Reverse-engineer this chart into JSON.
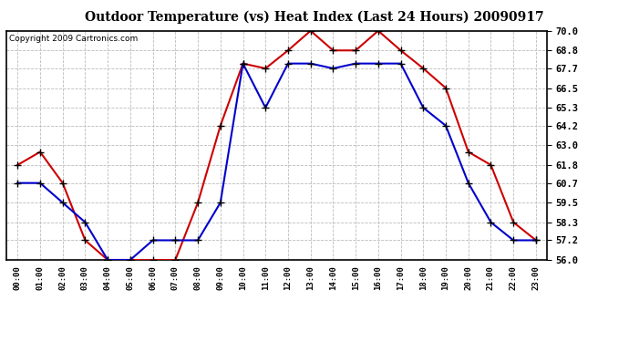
{
  "title": "Outdoor Temperature (vs) Heat Index (Last 24 Hours) 20090917",
  "copyright": "Copyright 2009 Cartronics.com",
  "hours": [
    "00:00",
    "01:00",
    "02:00",
    "03:00",
    "04:00",
    "05:00",
    "06:00",
    "07:00",
    "08:00",
    "09:00",
    "10:00",
    "11:00",
    "12:00",
    "13:00",
    "14:00",
    "15:00",
    "16:00",
    "17:00",
    "18:00",
    "19:00",
    "20:00",
    "21:00",
    "22:00",
    "23:00"
  ],
  "temp": [
    60.7,
    60.7,
    59.5,
    58.3,
    56.0,
    56.0,
    57.2,
    57.2,
    57.2,
    59.5,
    68.0,
    65.3,
    68.0,
    68.0,
    67.7,
    68.0,
    68.0,
    68.0,
    65.3,
    64.2,
    60.7,
    58.3,
    57.2,
    57.2
  ],
  "heat_index": [
    61.8,
    62.6,
    60.7,
    57.2,
    56.0,
    56.0,
    56.0,
    56.0,
    59.5,
    64.2,
    68.0,
    67.7,
    68.8,
    70.0,
    68.8,
    68.8,
    70.0,
    68.8,
    67.7,
    66.5,
    62.6,
    61.8,
    58.3,
    57.2
  ],
  "temp_color": "#0000cc",
  "heat_color": "#cc0000",
  "ylim_min": 56.0,
  "ylim_max": 70.0,
  "yticks": [
    56.0,
    57.2,
    58.3,
    59.5,
    60.7,
    61.8,
    63.0,
    64.2,
    65.3,
    66.5,
    67.7,
    68.8,
    70.0
  ],
  "grid_color": "#bbbbbb",
  "bg_color": "#ffffff",
  "plot_bg": "#ffffff",
  "title_fontsize": 10,
  "copyright_fontsize": 6.5
}
